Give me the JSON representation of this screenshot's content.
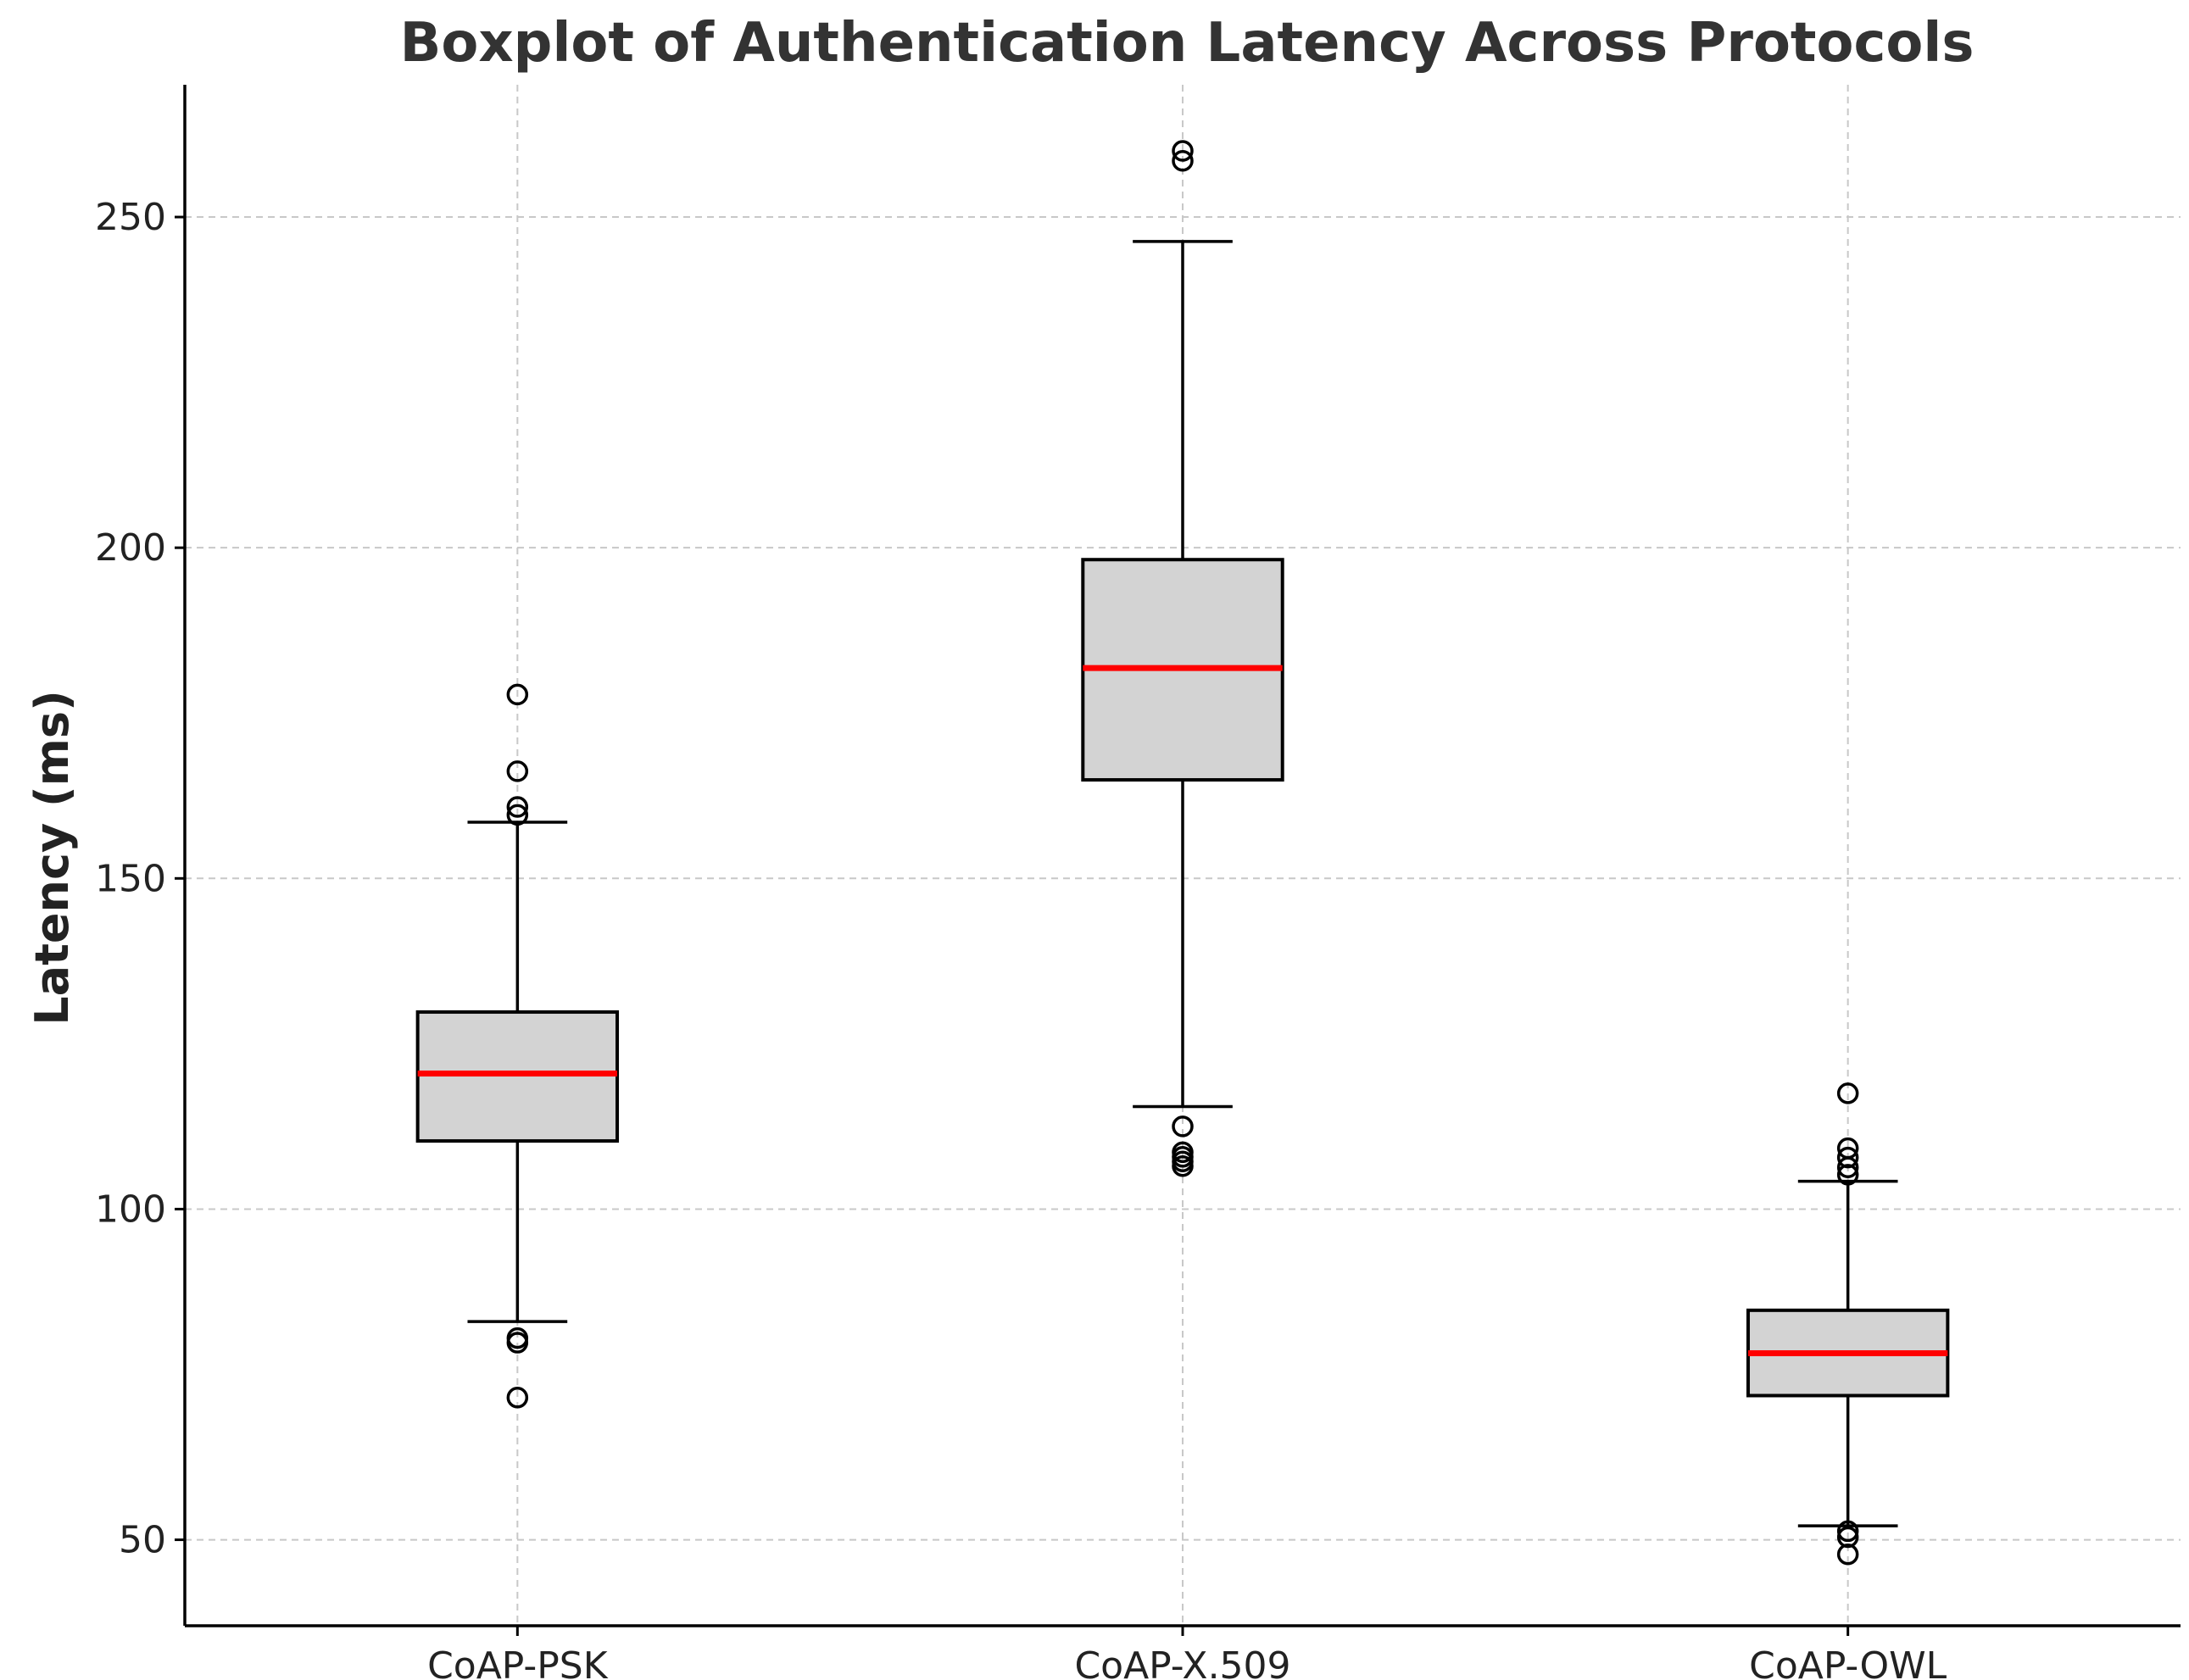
{
  "chart_data": {
    "type": "boxplot",
    "title": "Boxplot of Authentication Latency Across Protocols",
    "xlabel": "",
    "ylabel": "Latency (ms)",
    "ylim": [
      37,
      270
    ],
    "yticks": [
      50,
      100,
      150,
      200,
      250
    ],
    "grid": true,
    "categories": [
      "CoAP-PSK",
      "CoAP-X.509",
      "CoAP-OWL"
    ],
    "colors": {
      "box_fill": "#d3d3d3",
      "box_edge": "#000000",
      "median": "#ff0000",
      "grid": "#c8c8c8",
      "axis": "#000000"
    },
    "series": [
      {
        "name": "CoAP-PSK",
        "whisker_low": 83,
        "q1": 110.3,
        "median": 120.5,
        "q3": 129.8,
        "whisker_high": 158.5,
        "outliers": [
          71.5,
          79.8,
          80.5,
          159.6,
          160.8,
          166.2,
          177.8
        ]
      },
      {
        "name": "CoAP-X.509",
        "whisker_low": 115.5,
        "q1": 164.9,
        "median": 181.8,
        "q3": 198.2,
        "whisker_high": 246.3,
        "outliers": [
          106.5,
          107.2,
          107.9,
          108.6,
          112.5,
          258.5,
          260
        ]
      },
      {
        "name": "CoAP-OWL",
        "whisker_low": 52.1,
        "q1": 71.8,
        "median": 78.2,
        "q3": 84.7,
        "whisker_high": 104.2,
        "outliers": [
          47.8,
          50.4,
          51.3,
          105.2,
          106.3,
          107.8,
          109.2,
          117.5
        ]
      }
    ]
  }
}
